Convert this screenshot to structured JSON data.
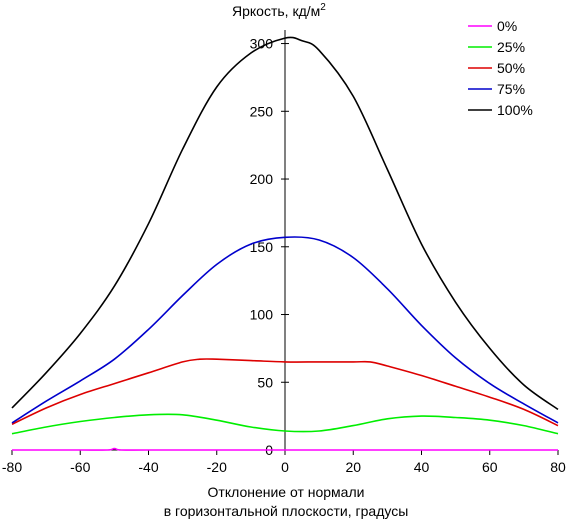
{
  "chart_data": {
    "type": "line",
    "title": "",
    "ylabel_main": "Яркость, кд/м",
    "ylabel_sup": "2",
    "xlabel_line1": "Отклонение от нормали",
    "xlabel_line2": "в горизонтальной плоскости, градусы",
    "xlim": [
      -80,
      80
    ],
    "ylim": [
      0,
      310
    ],
    "xticks": [
      -80,
      -60,
      -40,
      -20,
      0,
      20,
      40,
      60,
      80
    ],
    "yticks": [
      0,
      50,
      100,
      150,
      200,
      250,
      300
    ],
    "grid": false,
    "legend_position": "top-right",
    "series": [
      {
        "name": "0%",
        "color": "#ff00ff",
        "points": [
          [
            -80,
            0
          ],
          [
            -70,
            0
          ],
          [
            -60,
            0
          ],
          [
            -52,
            0
          ],
          [
            -50,
            1
          ],
          [
            -48,
            0
          ],
          [
            -40,
            0
          ],
          [
            -20,
            0
          ],
          [
            0,
            0
          ],
          [
            20,
            0
          ],
          [
            40,
            0
          ],
          [
            60,
            0
          ],
          [
            80,
            0
          ]
        ]
      },
      {
        "name": "25%",
        "color": "#00ee00",
        "points": [
          [
            -80,
            12
          ],
          [
            -70,
            17
          ],
          [
            -60,
            21
          ],
          [
            -50,
            24
          ],
          [
            -40,
            26
          ],
          [
            -30,
            26
          ],
          [
            -20,
            22
          ],
          [
            -10,
            17
          ],
          [
            0,
            14
          ],
          [
            10,
            14
          ],
          [
            20,
            18
          ],
          [
            30,
            23
          ],
          [
            40,
            25
          ],
          [
            50,
            24
          ],
          [
            60,
            22
          ],
          [
            70,
            18
          ],
          [
            80,
            12
          ]
        ]
      },
      {
        "name": "50%",
        "color": "#dd0000",
        "points": [
          [
            -80,
            19
          ],
          [
            -70,
            31
          ],
          [
            -60,
            41
          ],
          [
            -50,
            49
          ],
          [
            -40,
            57
          ],
          [
            -30,
            65
          ],
          [
            -25,
            67
          ],
          [
            -20,
            67
          ],
          [
            -10,
            66
          ],
          [
            0,
            65
          ],
          [
            10,
            65
          ],
          [
            20,
            65
          ],
          [
            25,
            65
          ],
          [
            30,
            62
          ],
          [
            40,
            55
          ],
          [
            50,
            47
          ],
          [
            60,
            39
          ],
          [
            70,
            30
          ],
          [
            80,
            18
          ]
        ]
      },
      {
        "name": "75%",
        "color": "#0000cc",
        "points": [
          [
            -80,
            20
          ],
          [
            -70,
            36
          ],
          [
            -60,
            51
          ],
          [
            -50,
            67
          ],
          [
            -40,
            89
          ],
          [
            -30,
            114
          ],
          [
            -20,
            137
          ],
          [
            -10,
            152
          ],
          [
            0,
            157
          ],
          [
            10,
            155
          ],
          [
            20,
            142
          ],
          [
            30,
            119
          ],
          [
            40,
            92
          ],
          [
            50,
            68
          ],
          [
            60,
            49
          ],
          [
            70,
            34
          ],
          [
            80,
            20
          ]
        ]
      },
      {
        "name": "100%",
        "color": "#000000",
        "points": [
          [
            -80,
            31
          ],
          [
            -70,
            57
          ],
          [
            -60,
            86
          ],
          [
            -50,
            121
          ],
          [
            -40,
            167
          ],
          [
            -30,
            222
          ],
          [
            -20,
            268
          ],
          [
            -10,
            293
          ],
          [
            0,
            304
          ],
          [
            5,
            302
          ],
          [
            10,
            295
          ],
          [
            20,
            261
          ],
          [
            30,
            207
          ],
          [
            40,
            152
          ],
          [
            50,
            109
          ],
          [
            60,
            75
          ],
          [
            70,
            48
          ],
          [
            80,
            30
          ]
        ]
      }
    ]
  }
}
